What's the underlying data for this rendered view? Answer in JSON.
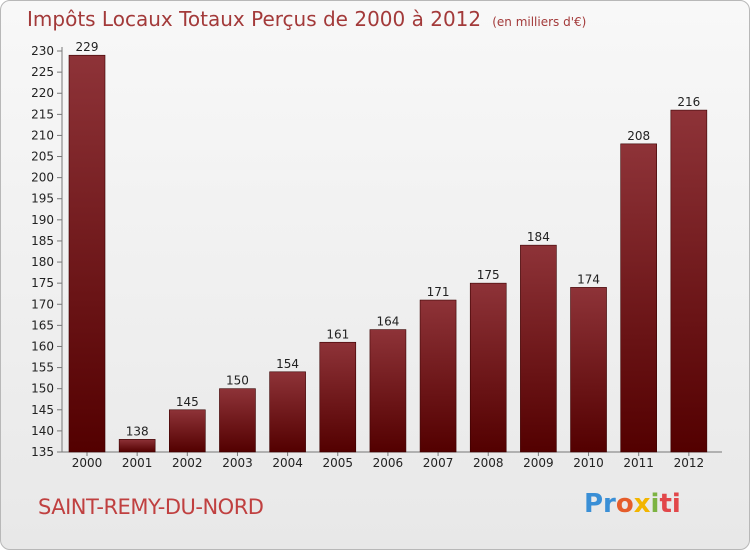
{
  "header": {
    "title": "Impôts Locaux Totaux Perçus de 2000 à 2012",
    "unit": "(en milliers d'€)"
  },
  "footer": {
    "commune": "SAINT-REMY-DU-NORD",
    "brand_parts": [
      "Pr",
      "o",
      "x",
      "i",
      "ti"
    ]
  },
  "colors": {
    "bar_top": "#8e3338",
    "bar_bottom": "#530000",
    "title": "#a33a3a"
  },
  "chart_data": {
    "type": "bar",
    "categories": [
      "2000",
      "2001",
      "2002",
      "2003",
      "2004",
      "2005",
      "2006",
      "2007",
      "2008",
      "2009",
      "2010",
      "2011",
      "2012"
    ],
    "values": [
      229,
      138,
      145,
      150,
      154,
      161,
      164,
      171,
      175,
      184,
      174,
      208,
      216
    ],
    "data_labels": [
      "229",
      "138",
      "145",
      "150",
      "154",
      "161",
      "164",
      "171",
      "175",
      "184",
      "174",
      "208",
      "216"
    ],
    "title": "Impôts Locaux Totaux Perçus de 2000 à 2012",
    "ylim": [
      135,
      230
    ],
    "yticks": [
      135,
      140,
      145,
      150,
      155,
      160,
      165,
      170,
      175,
      180,
      185,
      190,
      195,
      200,
      205,
      210,
      215,
      220,
      225,
      230
    ],
    "grid": false,
    "legend": "none"
  }
}
